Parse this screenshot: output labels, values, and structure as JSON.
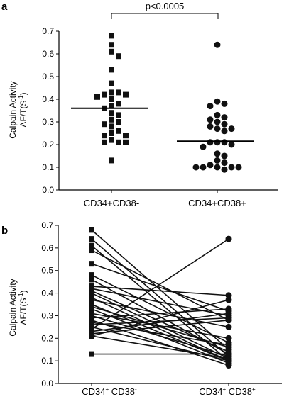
{
  "chart_data": [
    {
      "panel": "a",
      "type": "scatter",
      "ylabel_line1": "Calpain Activity",
      "ylabel_line2_main": "ΔF/T(S",
      "ylabel_line2_sup": "-1",
      "ylabel_line2_end": ")",
      "ylim": [
        0,
        0.7
      ],
      "yticks": [
        "0.0",
        "0.1",
        "0.2",
        "0.3",
        "0.4",
        "0.5",
        "0.6",
        "0.7"
      ],
      "categories": [
        "CD34+CD38-",
        "CD34+CD38+"
      ],
      "significance": "p<0.0005",
      "means": [
        0.36,
        0.215
      ],
      "series": [
        {
          "marker": "square",
          "values": [
            0.68,
            0.64,
            0.61,
            0.59,
            0.53,
            0.47,
            0.43,
            0.43,
            0.42,
            0.42,
            0.41,
            0.4,
            0.38,
            0.37,
            0.36,
            0.34,
            0.33,
            0.31,
            0.3,
            0.29,
            0.28,
            0.26,
            0.25,
            0.24,
            0.24,
            0.22,
            0.21,
            0.21,
            0.21,
            0.13
          ]
        },
        {
          "marker": "circle",
          "values": [
            0.64,
            0.39,
            0.38,
            0.37,
            0.33,
            0.32,
            0.31,
            0.3,
            0.29,
            0.28,
            0.27,
            0.27,
            0.26,
            0.21,
            0.21,
            0.21,
            0.2,
            0.19,
            0.16,
            0.15,
            0.13,
            0.12,
            0.11,
            0.1,
            0.1,
            0.1,
            0.1,
            0.1,
            0.09
          ]
        }
      ]
    },
    {
      "panel": "b",
      "type": "line",
      "ylabel_line1": "Calpain Activity",
      "ylabel_line2_main": "ΔF/T(S",
      "ylabel_line2_sup": "-1",
      "ylabel_line2_end": ")",
      "ylim": [
        0,
        0.7
      ],
      "yticks": [
        "0.0",
        "0.1",
        "0.2",
        "0.3",
        "0.4",
        "0.5",
        "0.6",
        "0.7"
      ],
      "categories": [
        {
          "a": "CD34",
          "a_sup": "+",
          "b": " CD38",
          "b_sup": "-"
        },
        {
          "a": "CD34",
          "a_sup": "+",
          "b": " CD38",
          "b_sup": "+"
        }
      ],
      "pairs": [
        [
          0.68,
          0.15
        ],
        [
          0.64,
          0.12
        ],
        [
          0.61,
          0.1
        ],
        [
          0.59,
          0.28
        ],
        [
          0.53,
          0.32
        ],
        [
          0.48,
          0.18
        ],
        [
          0.46,
          0.13
        ],
        [
          0.43,
          0.39
        ],
        [
          0.42,
          0.3
        ],
        [
          0.41,
          0.14
        ],
        [
          0.4,
          0.11
        ],
        [
          0.38,
          0.1
        ],
        [
          0.37,
          0.25
        ],
        [
          0.35,
          0.1
        ],
        [
          0.34,
          0.16
        ],
        [
          0.33,
          0.09
        ],
        [
          0.31,
          0.2
        ],
        [
          0.3,
          0.12
        ],
        [
          0.29,
          0.33
        ],
        [
          0.28,
          0.08
        ],
        [
          0.27,
          0.17
        ],
        [
          0.26,
          0.29
        ],
        [
          0.25,
          0.1
        ],
        [
          0.24,
          0.64
        ],
        [
          0.23,
          0.31
        ],
        [
          0.22,
          0.28
        ],
        [
          0.21,
          0.11
        ],
        [
          0.21,
          0.37
        ],
        [
          0.13,
          0.13
        ]
      ]
    }
  ]
}
